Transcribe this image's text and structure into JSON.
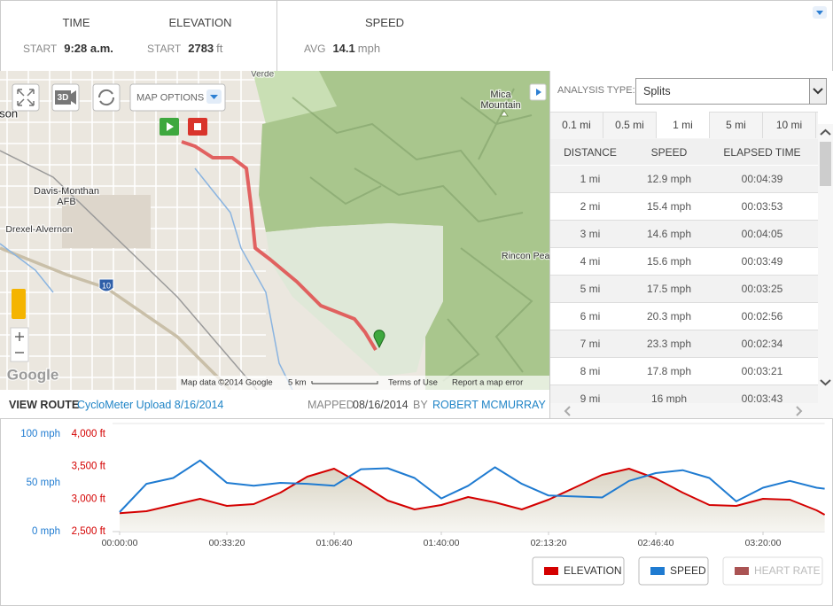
{
  "header": {
    "stats": [
      {
        "label": "TIME",
        "sub": "START",
        "value": "9:28 a.m."
      },
      {
        "label": "ELEVATION",
        "sub": "START",
        "value": 2783,
        "unit": "ft"
      },
      {
        "label": "SPEED",
        "sub": "AVG",
        "value": 14.1,
        "unit": "mph"
      }
    ]
  },
  "map": {
    "options": "MAP OPTIONS",
    "three_d": "3D",
    "labels": [
      "Verde",
      "Mica",
      "Mountain",
      "Tucson",
      "Davis-Monthan",
      "AFB",
      "Drexel-Alvernon",
      "Rincon Peak",
      "10",
      "Google"
    ],
    "attribution": "Map data ©2014 Google",
    "scale": "5 km",
    "terms": "Terms of Use",
    "report": "Report a map error"
  },
  "route": {
    "label": "VIEW ROUTE",
    "name": "CycloMeter Upload 8/16/2014",
    "mapped": "MAPPED",
    "date": "08/16/2014",
    "by": "BY",
    "author": "ROBERT MCMURRAY"
  },
  "splits": {
    "analysis_label": "ANALYSIS TYPE:",
    "analysis_type": "Splits",
    "tabs": [
      "0.1 mi",
      "0.5 mi",
      "1 mi",
      "5 mi",
      "10 mi"
    ],
    "selected_tab": 2,
    "columns": [
      "DISTANCE",
      "SPEED",
      "ELAPSED TIME"
    ],
    "rows": [
      [
        "1 mi",
        "12.9 mph",
        "00:04:39"
      ],
      [
        "2 mi",
        "15.4 mph",
        "00:03:53"
      ],
      [
        "3 mi",
        "14.6 mph",
        "00:04:05"
      ],
      [
        "4 mi",
        "15.6 mph",
        "00:03:49"
      ],
      [
        "5 mi",
        "17.5 mph",
        "00:03:25"
      ],
      [
        "6 mi",
        "20.3 mph",
        "00:02:56"
      ],
      [
        "7 mi",
        "23.3 mph",
        "00:02:34"
      ],
      [
        "8 mi",
        "17.8 mph",
        "00:03:21"
      ],
      [
        "9 mi",
        "16 mph",
        "00:03:43"
      ]
    ]
  },
  "chart_data": {
    "type": "line",
    "x": [
      0,
      500,
      1000,
      1500,
      2000,
      2500,
      3000,
      3500,
      4000,
      4500,
      5000,
      5500,
      6000,
      6500,
      7000,
      7500,
      8000,
      8500,
      9000,
      9500,
      10000,
      10500,
      11000,
      11500,
      12000,
      12500,
      13000,
      13150
    ],
    "xlim": [
      0,
      13150
    ],
    "xticks": [
      {
        "value": 0,
        "label": "00:00:00"
      },
      {
        "value": 2000,
        "label": "00:33:20"
      },
      {
        "value": 4000,
        "label": "01:06:40"
      },
      {
        "value": 6000,
        "label": "01:40:00"
      },
      {
        "value": 8000,
        "label": "02:13:20"
      },
      {
        "value": 10000,
        "label": "02:46:40"
      },
      {
        "value": 12000,
        "label": "03:20:00"
      }
    ],
    "ylim": [
      0,
      100
    ],
    "yticks": [
      {
        "value": 0,
        "label": "0 mph"
      },
      {
        "value": 50,
        "label": "50 mph"
      },
      {
        "value": 100,
        "label": "100 mph"
      }
    ],
    "y2lim": [
      2500,
      4000
    ],
    "y2ticks": [
      {
        "value": 2500,
        "label": "2,500 ft"
      },
      {
        "value": 3000,
        "label": "3,000 ft"
      },
      {
        "value": 3500,
        "label": "3,500 ft"
      },
      {
        "value": 4000,
        "label": "4,000 ft"
      }
    ],
    "series": [
      {
        "name": "ELEVATION",
        "color": "#d40000",
        "axis": "y2",
        "area": true,
        "values": [
          2783,
          2814,
          2909,
          3005,
          2895,
          2923,
          3100,
          3345,
          3468,
          3236,
          2977,
          2841,
          2909,
          3032,
          2950,
          2841,
          2991,
          3182,
          3373,
          3468,
          3318,
          3100,
          2909,
          2895,
          3005,
          2991,
          2827,
          2759
        ]
      },
      {
        "name": "SPEED",
        "color": "#1f7bd1",
        "axis": "y",
        "values": [
          20,
          49,
          55,
          73,
          50,
          47,
          50,
          49,
          47,
          64,
          65,
          55,
          34,
          47,
          66,
          49,
          37,
          36,
          35,
          52,
          60,
          63,
          55,
          31,
          45,
          52,
          45,
          44
        ]
      }
    ],
    "inactive_legend": [
      {
        "name": "HEART RATE",
        "color": "#9b3535"
      }
    ],
    "legend_position": "bottom-right"
  }
}
